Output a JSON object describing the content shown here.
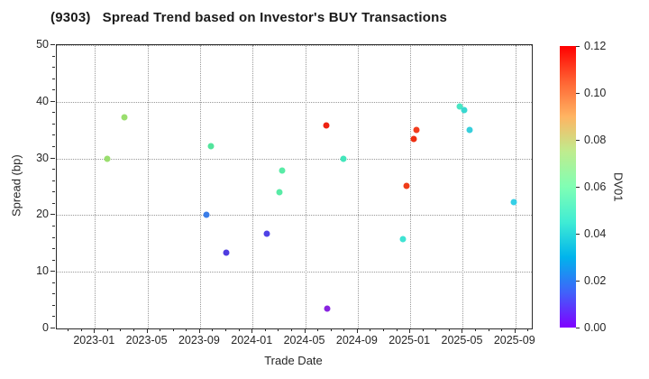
{
  "chart_data": {
    "type": "scatter",
    "title": "(9303)   Spread Trend based on Investor's BUY Transactions",
    "xlabel": "Trade Date",
    "ylabel": "Spread (bp)",
    "ylim": [
      0,
      50
    ],
    "y_ticks": [
      0,
      10,
      20,
      30,
      40,
      50
    ],
    "x_tick_labels": [
      "2023-01",
      "2023-05",
      "2023-09",
      "2024-01",
      "2024-05",
      "2024-09",
      "2025-01",
      "2025-05",
      "2025-09"
    ],
    "x_range_months_rel_2023_01": [
      -2.9,
      33.25
    ],
    "grid": true,
    "legend": "colorbar",
    "colorbar": {
      "label": "DV01",
      "range": [
        0.0,
        0.12
      ],
      "tick_labels": [
        "0.00",
        "0.02",
        "0.04",
        "0.06",
        "0.08",
        "0.10",
        "0.12"
      ],
      "gradient_bottom_to_top": [
        "#8000ff",
        "#4062fa",
        "#00b4ec",
        "#40ecd4",
        "#80ffb4",
        "#bfec8e",
        "#ffb462",
        "#ff6232",
        "#ff0000"
      ]
    },
    "points": [
      {
        "date": "2023-01-30",
        "spread": 30.0,
        "dv01": 0.066,
        "color": "#9ade6e"
      },
      {
        "date": "2023-03-09",
        "spread": 37.2,
        "dv01": 0.066,
        "color": "#9ade6e"
      },
      {
        "date": "2023-09-15",
        "spread": 20.0,
        "dv01": 0.028,
        "color": "#3a7de8"
      },
      {
        "date": "2023-09-27",
        "spread": 32.2,
        "dv01": 0.056,
        "color": "#52e49c"
      },
      {
        "date": "2023-11-01",
        "spread": 13.4,
        "dv01": 0.013,
        "color": "#4f3ce0"
      },
      {
        "date": "2024-02-03",
        "spread": 16.7,
        "dv01": 0.016,
        "color": "#4f42e6"
      },
      {
        "date": "2024-03-02",
        "spread": 24.1,
        "dv01": 0.053,
        "color": "#58eba6"
      },
      {
        "date": "2024-03-08",
        "spread": 27.8,
        "dv01": 0.053,
        "color": "#58eba6"
      },
      {
        "date": "2024-06-19",
        "spread": 35.9,
        "dv01": 0.116,
        "color": "#ee2211"
      },
      {
        "date": "2024-06-21",
        "spread": 3.5,
        "dv01": 0.004,
        "color": "#8823e0"
      },
      {
        "date": "2024-07-28",
        "spread": 29.9,
        "dv01": 0.049,
        "color": "#43e6bb"
      },
      {
        "date": "2024-12-14",
        "spread": 15.7,
        "dv01": 0.044,
        "color": "#3fe3d3"
      },
      {
        "date": "2024-12-22",
        "spread": 25.2,
        "dv01": 0.11,
        "color": "#ef3c18"
      },
      {
        "date": "2025-01-10",
        "spread": 33.4,
        "dv01": 0.113,
        "color": "#ee2f12"
      },
      {
        "date": "2025-01-15",
        "spread": 35.0,
        "dv01": 0.112,
        "color": "#f23c1e"
      },
      {
        "date": "2025-04-25",
        "spread": 39.1,
        "dv01": 0.048,
        "color": "#49e6c3"
      },
      {
        "date": "2025-05-04",
        "spread": 38.5,
        "dv01": 0.043,
        "color": "#38d8d0"
      },
      {
        "date": "2025-05-16",
        "spread": 35.0,
        "dv01": 0.041,
        "color": "#38cfdc"
      },
      {
        "date": "2025-08-27",
        "spread": 22.3,
        "dv01": 0.04,
        "color": "#35cfe6"
      }
    ]
  }
}
